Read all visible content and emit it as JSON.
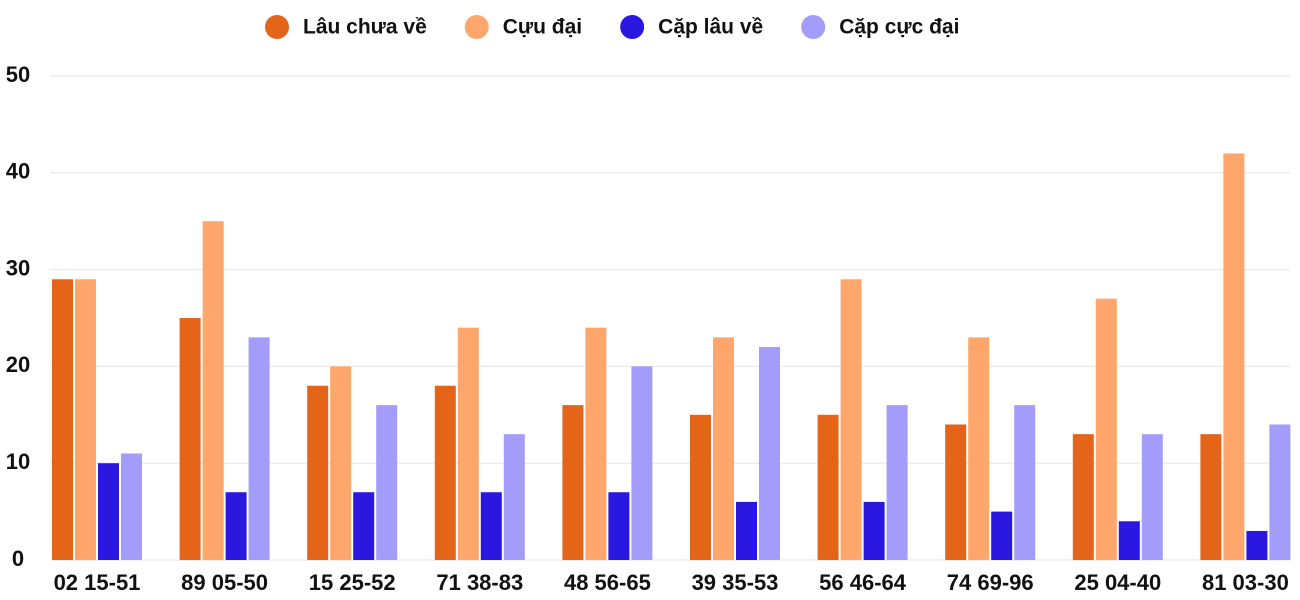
{
  "chart_data": {
    "type": "bar",
    "categories": [
      "02 15-51",
      "89 05-50",
      "15 25-52",
      "71 38-83",
      "48 56-65",
      "39 35-53",
      "56 46-64",
      "74 69-96",
      "25 04-40",
      "81 03-30"
    ],
    "series": [
      {
        "name": "Lâu chưa về",
        "color": "#e4641a",
        "values": [
          29,
          25,
          18,
          18,
          16,
          15,
          15,
          14,
          13,
          13
        ]
      },
      {
        "name": "Cựu đại",
        "color": "#fea66b",
        "values": [
          29,
          35,
          20,
          24,
          24,
          23,
          29,
          23,
          27,
          42
        ]
      },
      {
        "name": "Cặp lâu về",
        "color": "#2a17e0",
        "values": [
          10,
          7,
          7,
          7,
          7,
          6,
          6,
          5,
          4,
          3
        ]
      },
      {
        "name": "Cặp cực đại",
        "color": "#a39cfb",
        "values": [
          11,
          23,
          16,
          13,
          20,
          22,
          16,
          16,
          13,
          14
        ]
      }
    ],
    "ylim": [
      0,
      50
    ],
    "yticks": [
      0,
      10,
      20,
      30,
      40,
      50
    ],
    "grid": true,
    "legend": "top"
  }
}
